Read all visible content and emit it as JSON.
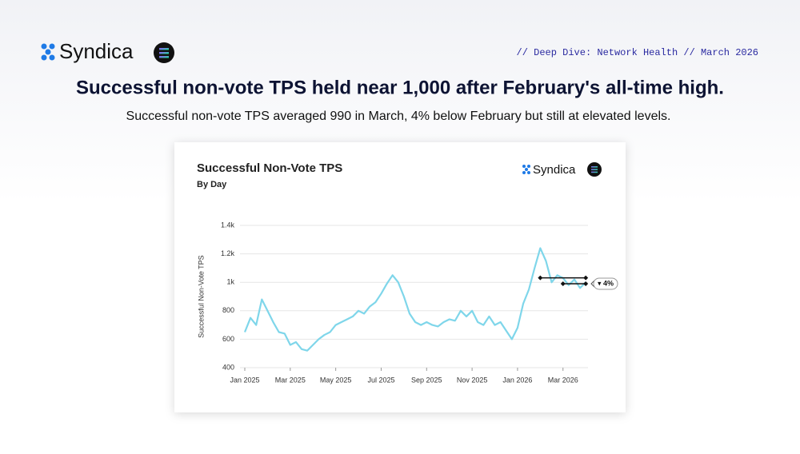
{
  "header": {
    "brand": "Syndica",
    "tag": "// Deep Dive: Network Health // March 2026",
    "title": "Successful non-vote TPS held near 1,000 after February's all-time high.",
    "subtitle": "Successful non-vote TPS averaged 990 in March, 4% below February but still at elevated levels."
  },
  "chart_data": {
    "type": "line",
    "title": "Successful Non-Vote TPS",
    "subtitle": "By Day",
    "brand": "Syndica",
    "y_label": "Successful Non-Vote TPS",
    "color": "#7fd6ea",
    "grid": true,
    "x": [
      0,
      0.25,
      0.5,
      0.75,
      1,
      1.25,
      1.5,
      1.75,
      2,
      2.25,
      2.5,
      2.75,
      3,
      3.25,
      3.5,
      3.75,
      4,
      4.25,
      4.5,
      4.75,
      5,
      5.25,
      5.5,
      5.75,
      6,
      6.25,
      6.5,
      6.75,
      7,
      7.25,
      7.5,
      7.75,
      8,
      8.25,
      8.5,
      8.75,
      9,
      9.25,
      9.5,
      9.75,
      10,
      10.25,
      10.5,
      10.75,
      11,
      11.25,
      11.5,
      11.75,
      12,
      12.25,
      12.5,
      12.75,
      13,
      13.25,
      13.5,
      13.75,
      14,
      14.25,
      14.5,
      14.75,
      15
    ],
    "values": [
      650,
      750,
      700,
      880,
      800,
      720,
      650,
      640,
      560,
      580,
      530,
      520,
      560,
      600,
      630,
      650,
      700,
      720,
      740,
      760,
      800,
      780,
      830,
      860,
      920,
      990,
      1050,
      1000,
      900,
      780,
      720,
      700,
      720,
      700,
      690,
      720,
      740,
      730,
      800,
      760,
      800,
      720,
      700,
      760,
      700,
      720,
      660,
      600,
      680,
      850,
      950,
      1100,
      1240,
      1150,
      1000,
      1050,
      1030,
      980,
      1020,
      960,
      1000
    ],
    "xlim": [
      0,
      15.1
    ],
    "xticks": [
      {
        "value": 0,
        "label": "Jan 2025"
      },
      {
        "value": 2,
        "label": "Mar 2025"
      },
      {
        "value": 4,
        "label": "May 2025"
      },
      {
        "value": 6,
        "label": "Jul 2025"
      },
      {
        "value": 8,
        "label": "Sep 2025"
      },
      {
        "value": 10,
        "label": "Nov 2025"
      },
      {
        "value": 12,
        "label": "Jan 2026"
      },
      {
        "value": 14,
        "label": "Mar 2026"
      }
    ],
    "ylim": [
      400,
      1400
    ],
    "yticks": [
      400,
      600,
      800,
      {
        "value": 1000,
        "label": "1k"
      },
      {
        "value": 1200,
        "label": "1.2k"
      },
      {
        "value": 1400,
        "label": "1.4k"
      }
    ],
    "avg_lines": [
      {
        "value": 1031,
        "x": [
          13,
          15
        ]
      },
      {
        "value": 990,
        "x": [
          14,
          15
        ]
      }
    ],
    "annotation": "▾ 4%"
  }
}
